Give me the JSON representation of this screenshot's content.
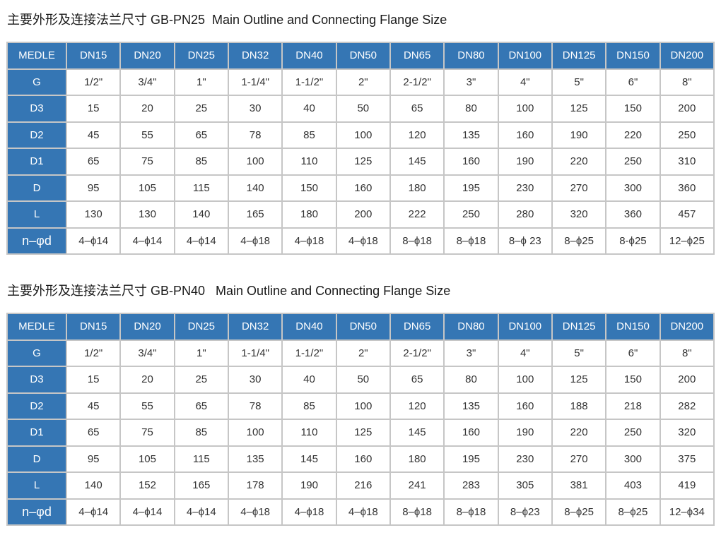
{
  "colors": {
    "header_blue": "#3576b4",
    "border_gray": "#c6c6c6",
    "cell_text": "#333333",
    "title_text": "#1a1a1a"
  },
  "tables": [
    {
      "title": "主要外形及连接法兰尺寸 GB-PN25  Main Outline and Connecting Flange Size",
      "columns": [
        "MEDLE",
        "DN15",
        "DN20",
        "DN25",
        "DN32",
        "DN40",
        "DN50",
        "DN65",
        "DN80",
        "DN100",
        "DN125",
        "DN150",
        "DN200"
      ],
      "rows": [
        {
          "label": "G",
          "values": [
            "1/2\"",
            "3/4\"",
            "1\"",
            "1-1/4\"",
            "1-1/2\"",
            "2\"",
            "2-1/2\"",
            "3\"",
            "4\"",
            "5\"",
            "6\"",
            "8\""
          ]
        },
        {
          "label": "D3",
          "values": [
            "15",
            "20",
            "25",
            "30",
            "40",
            "50",
            "65",
            "80",
            "100",
            "125",
            "150",
            "200"
          ]
        },
        {
          "label": "D2",
          "values": [
            "45",
            "55",
            "65",
            "78",
            "85",
            "100",
            "120",
            "135",
            "160",
            "190",
            "220",
            "250"
          ]
        },
        {
          "label": "D1",
          "values": [
            "65",
            "75",
            "85",
            "100",
            "110",
            "125",
            "145",
            "160",
            "190",
            "220",
            "250",
            "310"
          ]
        },
        {
          "label": "D",
          "values": [
            "95",
            "105",
            "115",
            "140",
            "150",
            "160",
            "180",
            "195",
            "230",
            "270",
            "300",
            "360"
          ]
        },
        {
          "label": "L",
          "values": [
            "130",
            "130",
            "140",
            "165",
            "180",
            "200",
            "222",
            "250",
            "280",
            "320",
            "360",
            "457"
          ]
        },
        {
          "label": "n–φd",
          "values": [
            "4–ϕ14",
            "4–ϕ14",
            "4–ϕ14",
            "4–ϕ18",
            "4–ϕ18",
            "4–ϕ18",
            "8–ϕ18",
            "8–ϕ18",
            "8–ϕ 23",
            "8–ϕ25",
            "8-ϕ25",
            "12–ϕ25"
          ]
        }
      ]
    },
    {
      "title": "主要外形及连接法兰尺寸 GB-PN40   Main Outline and Connecting Flange Size",
      "columns": [
        "MEDLE",
        "DN15",
        "DN20",
        "DN25",
        "DN32",
        "DN40",
        "DN50",
        "DN65",
        "DN80",
        "DN100",
        "DN125",
        "DN150",
        "DN200"
      ],
      "rows": [
        {
          "label": "G",
          "values": [
            "1/2\"",
            "3/4\"",
            "1\"",
            "1-1/4\"",
            "1-1/2\"",
            "2\"",
            "2-1/2\"",
            "3\"",
            "4\"",
            "5\"",
            "6\"",
            "8\""
          ]
        },
        {
          "label": "D3",
          "values": [
            "15",
            "20",
            "25",
            "30",
            "40",
            "50",
            "65",
            "80",
            "100",
            "125",
            "150",
            "200"
          ]
        },
        {
          "label": "D2",
          "values": [
            "45",
            "55",
            "65",
            "78",
            "85",
            "100",
            "120",
            "135",
            "160",
            "188",
            "218",
            "282"
          ]
        },
        {
          "label": "D1",
          "values": [
            "65",
            "75",
            "85",
            "100",
            "110",
            "125",
            "145",
            "160",
            "190",
            "220",
            "250",
            "320"
          ]
        },
        {
          "label": "D",
          "values": [
            "95",
            "105",
            "115",
            "135",
            "145",
            "160",
            "180",
            "195",
            "230",
            "270",
            "300",
            "375"
          ]
        },
        {
          "label": "L",
          "values": [
            "140",
            "152",
            "165",
            "178",
            "190",
            "216",
            "241",
            "283",
            "305",
            "381",
            "403",
            "419"
          ]
        },
        {
          "label": "n–φd",
          "values": [
            "4–ϕ14",
            "4–ϕ14",
            "4–ϕ14",
            "4–ϕ18",
            "4–ϕ18",
            "4–ϕ18",
            "8–ϕ18",
            "8–ϕ18",
            "8–ϕ23",
            "8–ϕ25",
            "8–ϕ25",
            "12–ϕ34"
          ]
        }
      ]
    }
  ]
}
